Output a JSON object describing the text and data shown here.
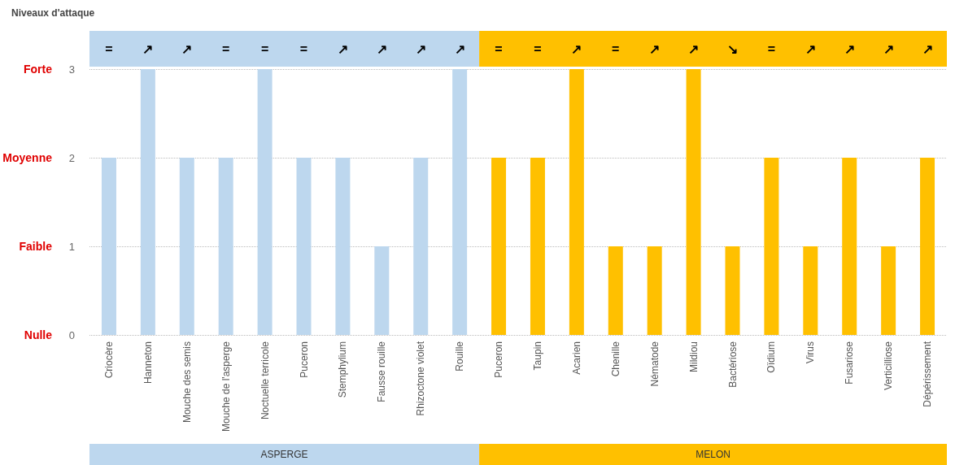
{
  "chart_data": {
    "type": "bar",
    "ylabel": "Niveaux d'attaque",
    "categories": [
      "Criocère",
      "Hanneton",
      "Mouche des semis",
      "Mouche de l'asperge",
      "Noctuelle terricole",
      "Puceron",
      "Stemphylium",
      "Fausse rouille",
      "Rhizoctone violet",
      "Rouille",
      "Puceron",
      "Taupin",
      "Acarien",
      "Chenille",
      "Nématode",
      "Mildiou",
      "Bactériose",
      "Oïdium",
      "Virus",
      "Fusariose",
      "Verticilliose",
      "Dépérissement"
    ],
    "series": [
      {
        "name": "ASPERGE",
        "color": "#bdd7ee",
        "values": [
          2,
          3,
          2,
          2,
          3,
          2,
          2,
          1,
          2,
          3,
          null,
          null,
          null,
          null,
          null,
          null,
          null,
          null,
          null,
          null,
          null,
          null
        ]
      },
      {
        "name": "MELON",
        "color": "#ffc000",
        "values": [
          null,
          null,
          null,
          null,
          null,
          null,
          null,
          null,
          null,
          null,
          2,
          2,
          3,
          1,
          1,
          3,
          1,
          2,
          1,
          2,
          1,
          2
        ]
      }
    ],
    "stacked": true,
    "ylim": [
      0,
      3
    ],
    "yticks": [
      0,
      1,
      2,
      3
    ],
    "grid": "y",
    "legend": false,
    "annotations": [
      "=",
      "↗",
      "↗",
      "=",
      "=",
      "=",
      "↗",
      "↗",
      "↗",
      "↗",
      "=",
      "=",
      "↗",
      "=",
      "↗",
      "↗",
      "↘",
      "=",
      "↗",
      "↗",
      "↗",
      "↗",
      "Forte",
      "Moyenne",
      "Faible",
      "Nulle"
    ]
  }
}
